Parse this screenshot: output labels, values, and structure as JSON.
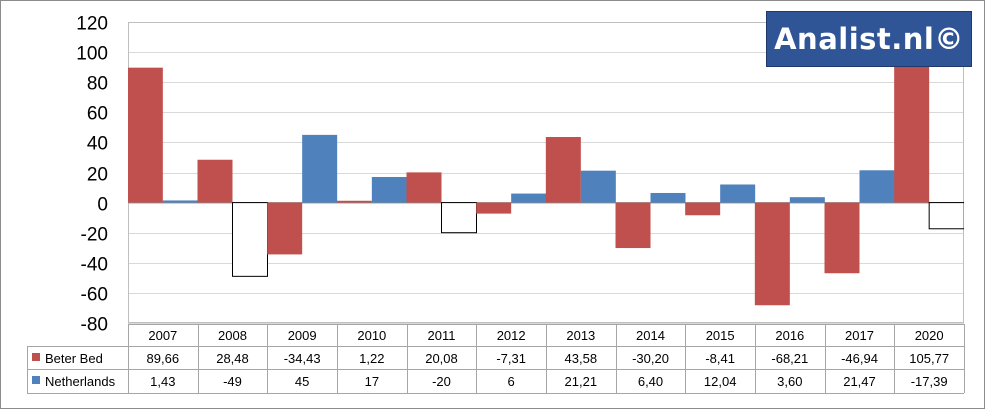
{
  "logo_text": "Analist.nl©",
  "chart_data": {
    "type": "bar",
    "categories": [
      "2007",
      "2008",
      "2009",
      "2010",
      "2011",
      "2012",
      "2013",
      "2014",
      "2015",
      "2016",
      "2017",
      "2020"
    ],
    "series": [
      {
        "name": "Beter Bed",
        "color": "#c0504d",
        "values": [
          89.66,
          28.48,
          -34.43,
          1.22,
          20.08,
          -7.31,
          43.58,
          -30.2,
          -8.41,
          -68.21,
          -46.94,
          105.77
        ],
        "labels": [
          "89,66",
          "28,48",
          "-34,43",
          "1,22",
          "20,08",
          "-7,31",
          "43,58",
          "-30,20",
          "-8,41",
          "-68,21",
          "-46,94",
          "105,77"
        ]
      },
      {
        "name": "Netherlands",
        "color": "#4f81bd",
        "negative_color": "#ffffff",
        "values": [
          1.43,
          -49,
          45,
          17,
          -20,
          6,
          21.21,
          6.4,
          12.04,
          3.6,
          21.47,
          -17.39
        ],
        "labels": [
          "1,43",
          "-49",
          "45",
          "17",
          "-20",
          "6",
          "21,21",
          "6,40",
          "12,04",
          "3,60",
          "21,47",
          "-17,39"
        ]
      }
    ],
    "ylim": [
      -80,
      120
    ],
    "yticks": [
      "120",
      "100",
      "80",
      "60",
      "40",
      "20",
      "0",
      "-20",
      "-40",
      "-60",
      "-80"
    ],
    "grid": true,
    "legend": "data-table"
  }
}
